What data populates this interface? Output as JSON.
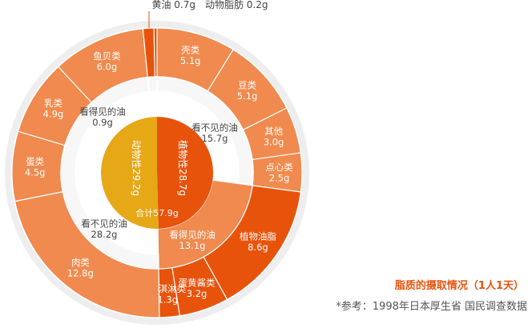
{
  "chart_data": {
    "type": "pie",
    "rings": {
      "inner": {
        "slices": [
          {
            "line1": "植物性28.7g",
            "value": 28.7,
            "color": "#e8530c"
          },
          {
            "line1": "动物性29.2g",
            "value": 29.2,
            "color": "#e6a817"
          }
        ],
        "total_label": "合计57.9g"
      },
      "middle": {
        "slices": [
          {
            "line1": "看不见的油",
            "line2": "15.7g",
            "value": 15.7,
            "color": "#ffffff"
          },
          {
            "line1": "看得见的油",
            "line2": "13.1g",
            "value": 13.1,
            "color": "#f08a4e"
          },
          {
            "line1": "看不见的油",
            "line2": "28.2g",
            "value": 28.2,
            "color": "#ffffff"
          },
          {
            "line1": "看得见的油",
            "line2": "0.9g",
            "value": 0.9,
            "color": "#ffffff"
          }
        ]
      },
      "outer": {
        "slices": [
          {
            "line1": "壳类",
            "line2": "5.1g",
            "value": 5.1,
            "color": "#f08a4e"
          },
          {
            "line1": "豆类",
            "line2": "5.1g",
            "value": 5.1,
            "color": "#f08a4e"
          },
          {
            "line1": "其他",
            "line2": "3.0g",
            "value": 3.0,
            "color": "#f08a4e"
          },
          {
            "line1": "点心类",
            "line2": "2.5g",
            "value": 2.5,
            "color": "#f08a4e"
          },
          {
            "line1": "植物油脂",
            "line2": "8.6g",
            "value": 8.6,
            "color": "#e8530c"
          },
          {
            "line1": "蛋黄酱类",
            "line2": "3.2g",
            "value": 3.2,
            "color": "#e8530c"
          },
          {
            "line1": "麦淇淋类",
            "line2": "1.3g",
            "value": 1.3,
            "color": "#e8530c"
          },
          {
            "line1": "肉类",
            "line2": "12.8g",
            "value": 12.8,
            "color": "#f08a4e"
          },
          {
            "line1": "蛋类",
            "line2": "4.5g",
            "value": 4.5,
            "color": "#f08a4e"
          },
          {
            "line1": "乳类",
            "line2": "4.9g",
            "value": 4.9,
            "color": "#f08a4e"
          },
          {
            "line1": "鱼贝类",
            "line2": "6.0g",
            "value": 6.0,
            "color": "#f08a4e"
          },
          {
            "line1": "黄油 0.7g",
            "value": 0.7,
            "color": "#e8530c",
            "external": true
          },
          {
            "line1": "动物脂肪 0.2g",
            "value": 0.2,
            "color": "#e8530c",
            "external": true
          }
        ]
      }
    }
  },
  "caption": {
    "title": "脂质的摄取情况（1人1天）",
    "note": "*参考：1998年日本厚生省 国民调查数据"
  },
  "colors": {
    "ring_background": "#eeeeee",
    "plant": "#e8530c",
    "animal": "#e6a817",
    "food": "#f08a4e",
    "label": "#444444",
    "label_light": "#ffffff"
  }
}
